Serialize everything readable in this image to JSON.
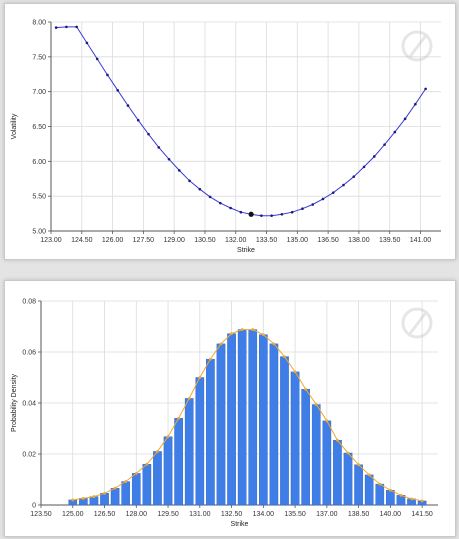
{
  "charts": [
    {
      "type": "line",
      "xlabel": "Strike",
      "ylabel": "Volatility",
      "xlim": [
        123.0,
        142.0
      ],
      "ylim": [
        5.0,
        8.0
      ],
      "xticks": [
        "123.00",
        "124.50",
        "126.00",
        "127.50",
        "129.00",
        "130.50",
        "132.00",
        "133.50",
        "135.00",
        "136.50",
        "138.00",
        "139.50",
        "141.00"
      ],
      "xtick_values": [
        123.0,
        124.5,
        126.0,
        127.5,
        129.0,
        130.5,
        132.0,
        133.5,
        135.0,
        136.5,
        138.0,
        139.5,
        141.0
      ],
      "yticks": [
        "5.00",
        "5.50",
        "6.00",
        "6.50",
        "7.00",
        "7.50",
        "8.00"
      ],
      "ytick_values": [
        5.0,
        5.5,
        6.0,
        6.5,
        7.0,
        7.5,
        8.0
      ],
      "grid": true,
      "line_color": "#3a3ad0",
      "series": [
        {
          "x": [
            123.25,
            123.75,
            124.25,
            124.75,
            125.25,
            125.75,
            126.25,
            126.75,
            127.25,
            127.75,
            128.25,
            128.75,
            129.25,
            129.75,
            130.25,
            130.75,
            131.25,
            131.75,
            132.25,
            132.75,
            133.25,
            133.75,
            134.25,
            134.75,
            135.25,
            135.75,
            136.25,
            136.75,
            137.25,
            137.75,
            138.25,
            138.75,
            139.25,
            139.75,
            140.25,
            140.75,
            141.25
          ],
          "y": [
            7.92,
            7.93,
            7.93,
            7.7,
            7.47,
            7.24,
            7.02,
            6.8,
            6.59,
            6.39,
            6.2,
            6.03,
            5.87,
            5.72,
            5.6,
            5.49,
            5.4,
            5.33,
            5.27,
            5.24,
            5.22,
            5.22,
            5.24,
            5.27,
            5.32,
            5.38,
            5.46,
            5.55,
            5.66,
            5.78,
            5.92,
            6.07,
            6.24,
            6.42,
            6.61,
            6.82,
            7.04
          ]
        }
      ],
      "highlight_point": {
        "x": 132.75,
        "y": 5.24
      }
    },
    {
      "type": "bar",
      "xlabel": "Strike",
      "ylabel": "Probability Density",
      "xlim": [
        123.5,
        142.25
      ],
      "ylim": [
        0,
        0.08
      ],
      "xticks": [
        "123.50",
        "125.00",
        "126.50",
        "128.00",
        "129.50",
        "131.00",
        "132.50",
        "134.00",
        "135.50",
        "137.00",
        "138.50",
        "140.00",
        "141.50"
      ],
      "xtick_values": [
        123.5,
        125.0,
        126.5,
        128.0,
        129.5,
        131.0,
        132.5,
        134.0,
        135.5,
        137.0,
        138.5,
        140.0,
        141.5
      ],
      "yticks": [
        "0",
        "0.02",
        "0.04",
        "0.06",
        "0.08"
      ],
      "ytick_values": [
        0,
        0.02,
        0.04,
        0.06,
        0.08
      ],
      "grid": true,
      "bar_color": "#3f7ee6",
      "line_color": "#f0a830",
      "series": [
        {
          "x": [
            125.0,
            125.5,
            126.0,
            126.5,
            127.0,
            127.5,
            128.0,
            128.5,
            129.0,
            129.5,
            130.0,
            130.5,
            131.0,
            131.5,
            132.0,
            132.5,
            133.0,
            133.5,
            134.0,
            134.5,
            135.0,
            135.5,
            136.0,
            136.5,
            137.0,
            137.5,
            138.0,
            138.5,
            139.0,
            139.5,
            140.0,
            140.5,
            141.0,
            141.5
          ],
          "values": [
            0.002,
            0.0026,
            0.0033,
            0.0046,
            0.0066,
            0.0092,
            0.0124,
            0.016,
            0.021,
            0.0268,
            0.034,
            0.0418,
            0.05,
            0.0572,
            0.0632,
            0.0672,
            0.0688,
            0.0688,
            0.0668,
            0.0632,
            0.0582,
            0.0522,
            0.0454,
            0.0394,
            0.033,
            0.0254,
            0.0204,
            0.0158,
            0.0118,
            0.0082,
            0.0058,
            0.0038,
            0.0024,
            0.0016
          ]
        }
      ]
    }
  ]
}
